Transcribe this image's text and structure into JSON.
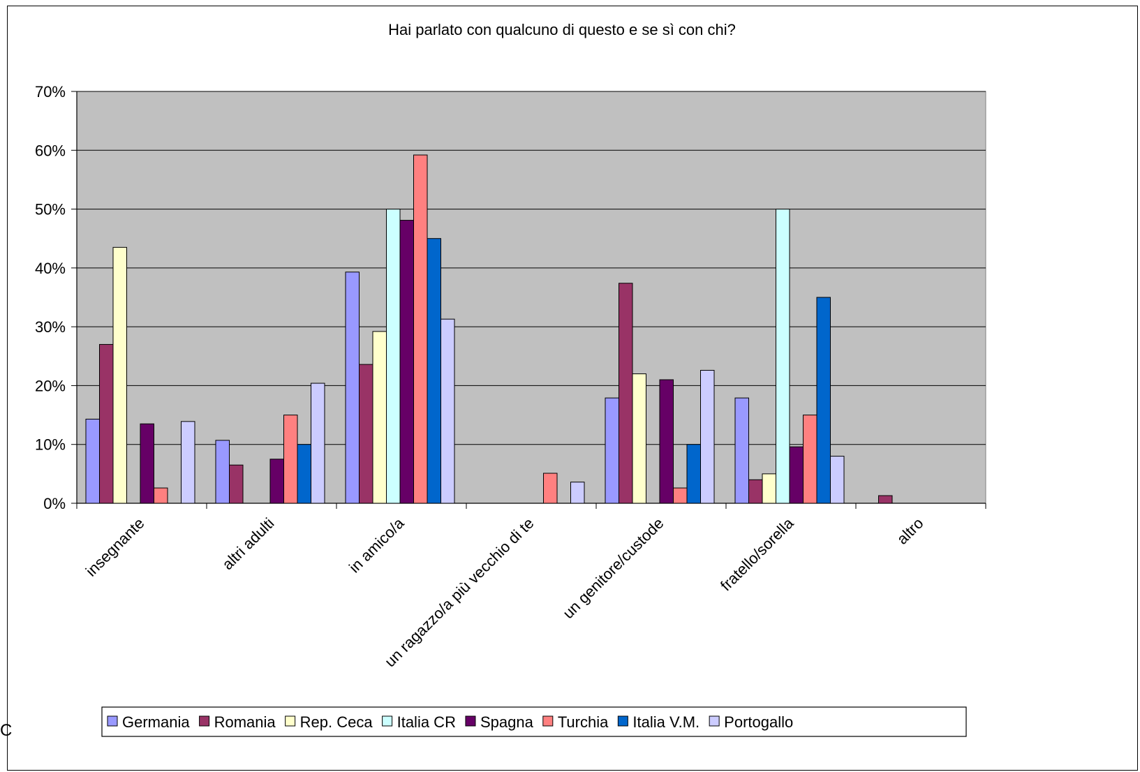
{
  "chart_data": {
    "type": "bar",
    "title": "Hai parlato con qualcuno di questo e se sì con chi?",
    "xlabel": "",
    "ylabel": "",
    "ylim": [
      0,
      0.7
    ],
    "yticks": [
      "0%",
      "10%",
      "20%",
      "30%",
      "40%",
      "50%",
      "60%",
      "70%"
    ],
    "yticks_values": [
      0,
      0.1,
      0.2,
      0.3,
      0.4,
      0.5,
      0.6,
      0.7
    ],
    "grid": true,
    "plot_background": "#C0C0C0",
    "legend_position": "bottom",
    "categories": [
      "insegnante",
      "altri adulti",
      "in amico/a",
      "un ragazzo/a più vecchio di te",
      "un genitore/custode",
      "fratello/sorella",
      "altro"
    ],
    "series": [
      {
        "name": "Germania",
        "color": "#9999FF",
        "values": [
          0.143,
          0.107,
          0.393,
          0.0,
          0.179,
          0.179,
          0.0
        ]
      },
      {
        "name": "Romania",
        "color": "#993366",
        "values": [
          0.27,
          0.065,
          0.236,
          0.0,
          0.374,
          0.04,
          0.013
        ]
      },
      {
        "name": "Rep. Ceca",
        "color": "#FFFFCC",
        "values": [
          0.435,
          0.0,
          0.292,
          0.0,
          0.22,
          0.05,
          0.0
        ]
      },
      {
        "name": "Italia CR",
        "color": "#CCFFFF",
        "values": [
          0.0,
          0.0,
          0.5,
          0.0,
          0.0,
          0.5,
          0.0
        ]
      },
      {
        "name": "Spagna",
        "color": "#660066",
        "values": [
          0.135,
          0.075,
          0.481,
          0.0,
          0.21,
          0.096,
          0.0
        ]
      },
      {
        "name": "Turchia",
        "color": "#FF8080",
        "values": [
          0.026,
          0.15,
          0.592,
          0.051,
          0.026,
          0.15,
          0.0
        ]
      },
      {
        "name": "Italia V.M.",
        "color": "#0066CC",
        "values": [
          0.0,
          0.1,
          0.45,
          0.0,
          0.1,
          0.35,
          0.0
        ]
      },
      {
        "name": "Portogallo",
        "color": "#CCCCFF",
        "values": [
          0.139,
          0.204,
          0.313,
          0.036,
          0.226,
          0.08,
          0.0
        ]
      }
    ]
  },
  "stray_glyph": "C"
}
